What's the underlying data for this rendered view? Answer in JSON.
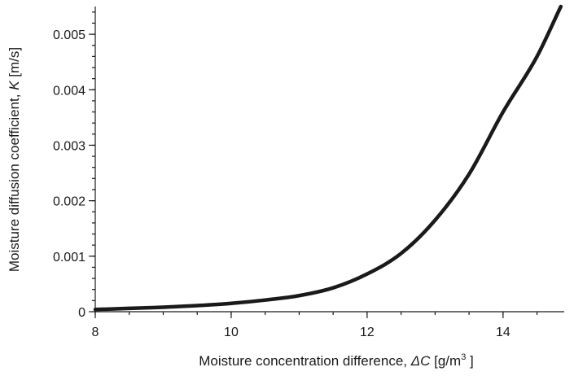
{
  "chart_data": {
    "type": "line",
    "xlabel": {
      "prefix": "Moisture concentration difference, ",
      "symbol": "ΔC",
      "unit_open": " [g/m",
      "unit_sup": "3",
      "unit_close": " ]"
    },
    "ylabel": {
      "prefix": "Moisture diffusion coefficient, ",
      "symbol": "K",
      "unit": " [m/s]"
    },
    "xlim": [
      8,
      14.9
    ],
    "ylim": [
      0,
      0.0055
    ],
    "x_ticks": [
      8,
      10,
      12,
      14
    ],
    "x_tick_labels": [
      "8",
      "10",
      "12",
      "14"
    ],
    "y_ticks": [
      0,
      0.001,
      0.002,
      0.003,
      0.004,
      0.005
    ],
    "y_tick_labels": [
      "0",
      "0.001",
      "0.002",
      "0.003",
      "0.004",
      "0.005"
    ],
    "series": [
      {
        "x": [
          8.0,
          8.5,
          9.0,
          9.5,
          10.0,
          10.5,
          11.0,
          11.5,
          12.0,
          12.5,
          13.0,
          13.5,
          14.0,
          14.5,
          14.85
        ],
        "y": [
          4e-05,
          6e-05,
          8e-05,
          0.00011,
          0.00015,
          0.00021,
          0.00029,
          0.00043,
          0.00068,
          0.00105,
          0.00165,
          0.00248,
          0.0036,
          0.0046,
          0.0055
        ]
      }
    ],
    "grid": false
  }
}
